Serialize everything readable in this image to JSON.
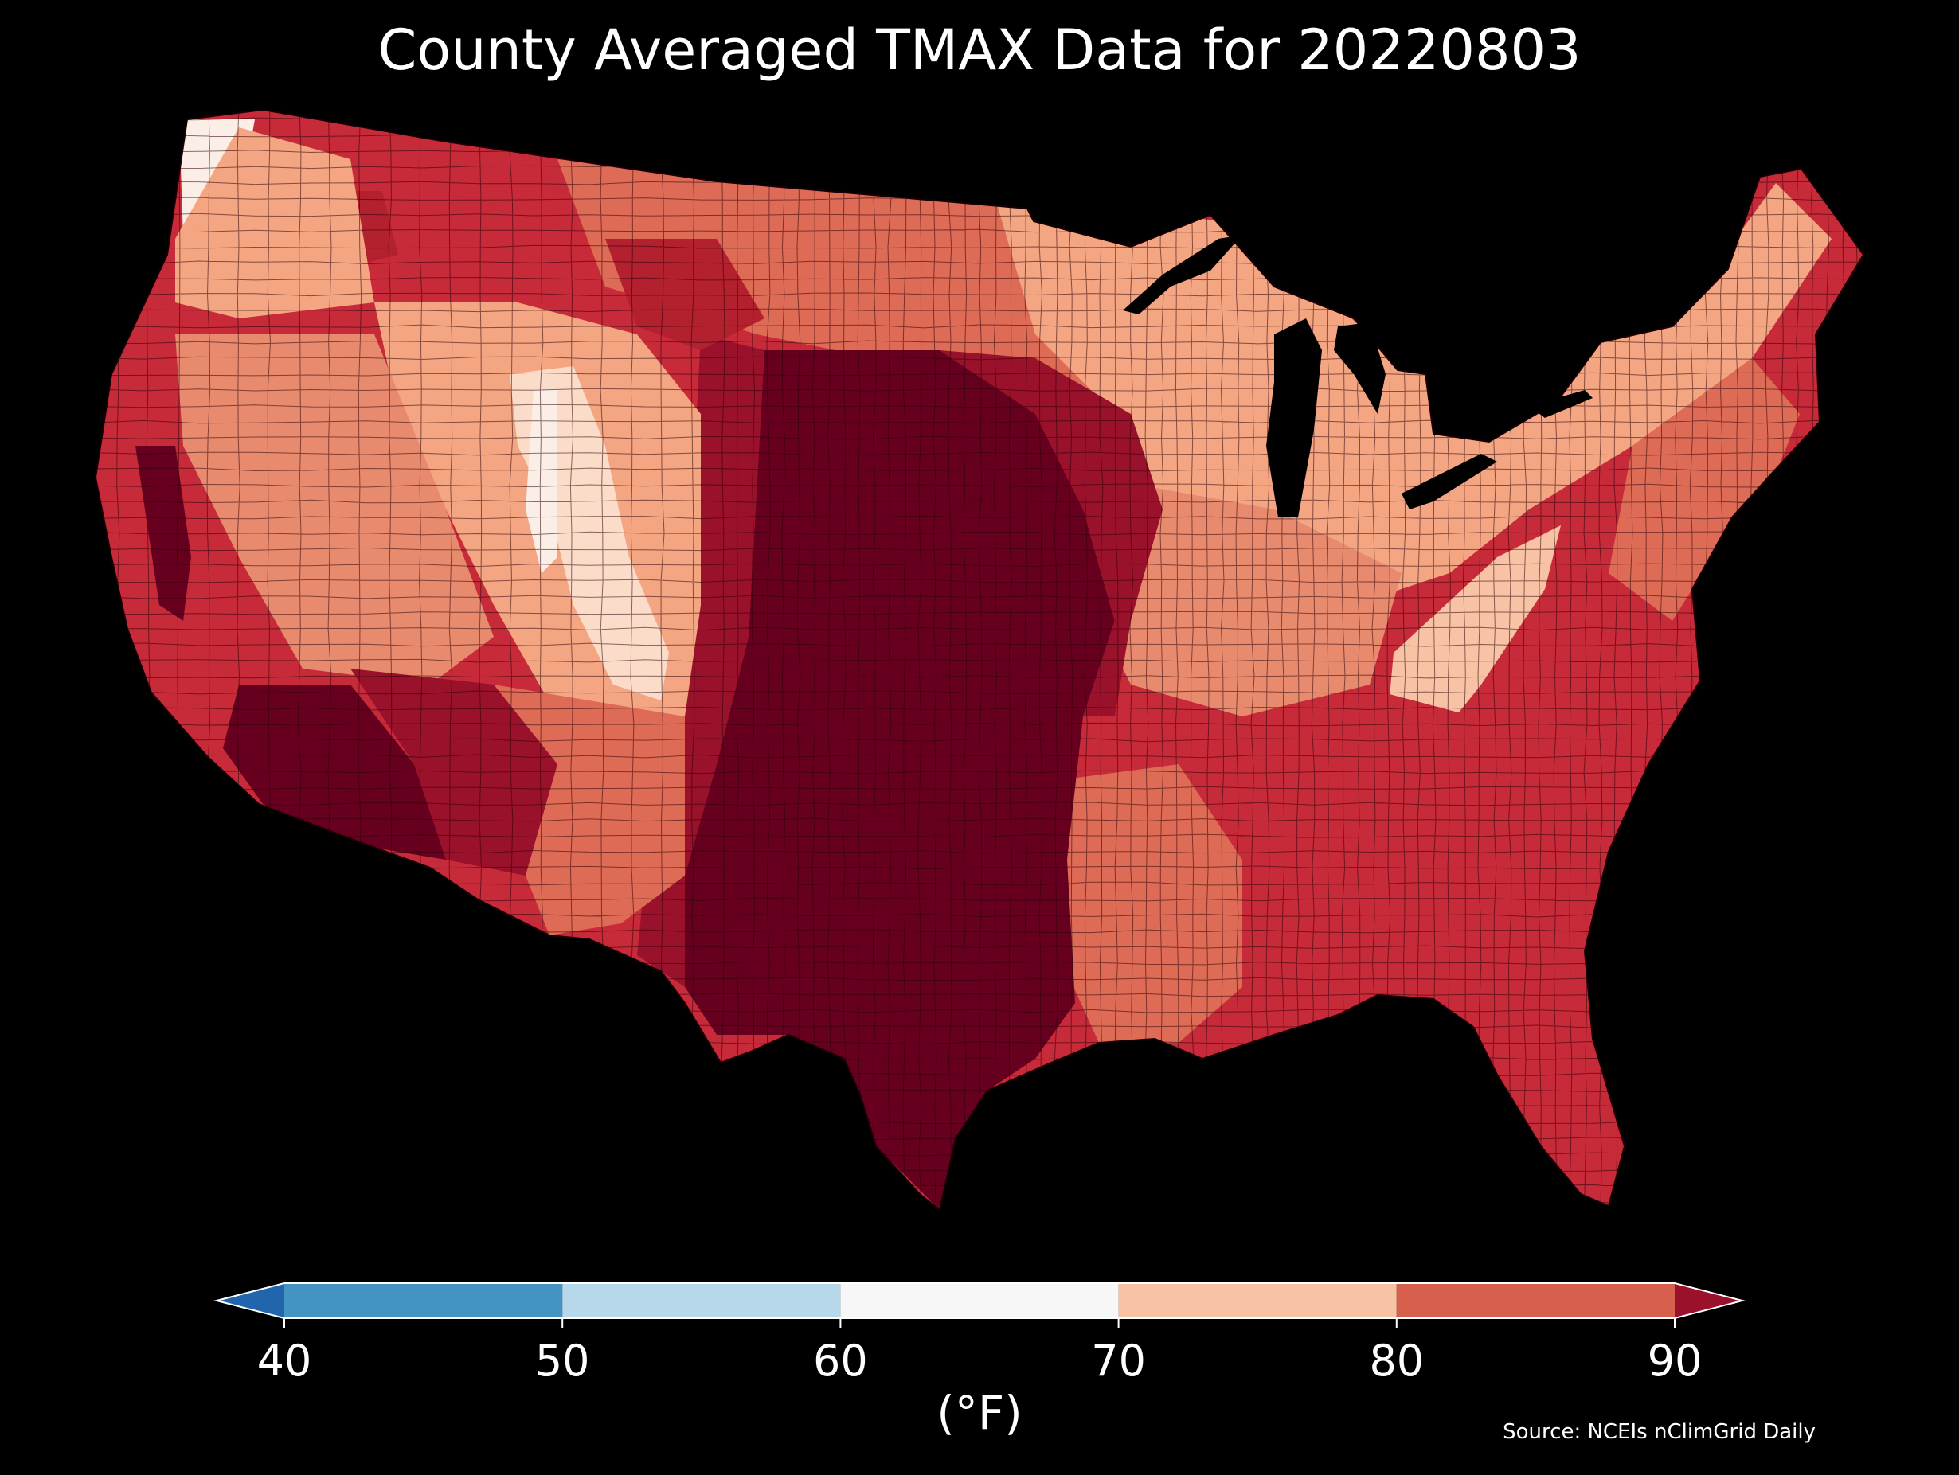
{
  "title": "County Averaged TMAX Data for 20220803",
  "colorbar": {
    "ticks": [
      "40",
      "50",
      "60",
      "70",
      "80",
      "90"
    ],
    "unit": "(°F)",
    "bins": [
      {
        "from": 40,
        "to": 50,
        "color": "#4393c3"
      },
      {
        "from": 50,
        "to": 60,
        "color": "#b7d7ea"
      },
      {
        "from": 60,
        "to": 70,
        "color": "#f7f7f7"
      },
      {
        "from": 70,
        "to": 80,
        "color": "#f8c2a5"
      },
      {
        "from": 80,
        "to": 90,
        "color": "#d6604d"
      }
    ],
    "under_color": "#2166ac",
    "over_color": "#99112a"
  },
  "source": "Source: NCEIs nClimGrid Daily",
  "colors": {
    "background": "#000000",
    "hottest": "#67001f",
    "very_hot": "#99112a",
    "hot": "#c72a38",
    "warm": "#de6b55",
    "mild": "#f4a582",
    "cool": "#fbdcc9",
    "coolest": "#fbeee6",
    "county_border": "#2a0008"
  }
}
